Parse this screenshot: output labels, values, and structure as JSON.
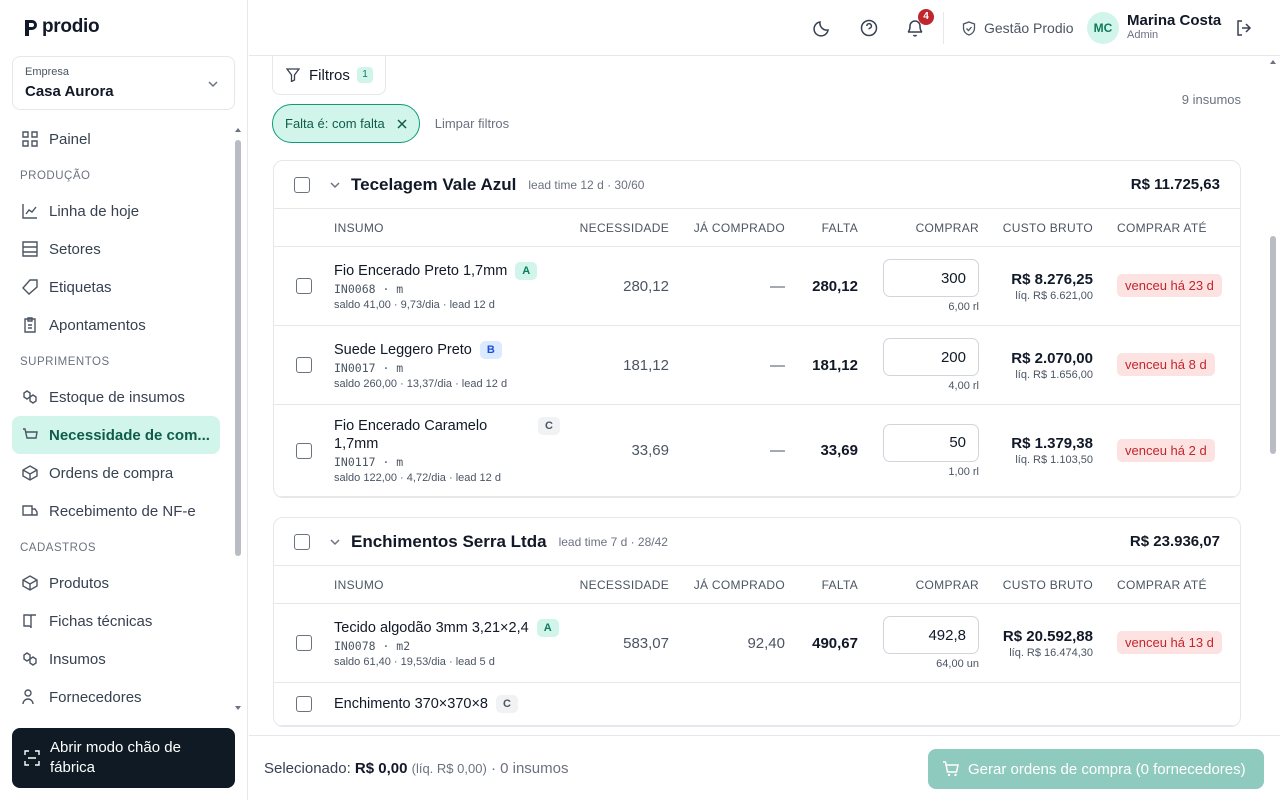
{
  "sidebar": {
    "logo": "prodio",
    "company_label": "Empresa",
    "company": "Casa Aurora",
    "nav": [
      {
        "items": [
          "Painel"
        ]
      },
      {
        "title": "PRODUÇÃO",
        "items": [
          "Linha de hoje",
          "Setores",
          "Etiquetas",
          "Apontamentos"
        ]
      },
      {
        "title": "SUPRIMENTOS",
        "items": [
          "Estoque de insumos",
          "Necessidade de com...",
          "Ordens de compra",
          "Recebimento de NF-e"
        ]
      },
      {
        "title": "CADASTROS",
        "items": [
          "Produtos",
          "Fichas técnicas",
          "Insumos",
          "Fornecedores"
        ]
      }
    ],
    "cta": "Abrir modo chão de fábrica"
  },
  "topbar": {
    "notifications": 4,
    "workspace": "Gestão Prodio",
    "user": {
      "initials": "MC",
      "name": "Marina Costa",
      "role": "Admin"
    }
  },
  "filters": {
    "button": "Filtros",
    "count": 1,
    "result_count": "9 insumos",
    "chips": [
      "Falta é: com falta"
    ],
    "clear": "Limpar filtros"
  },
  "table": {
    "columns": [
      "INSUMO",
      "NECESSIDADE",
      "JÁ COMPRADO",
      "FALTA",
      "COMPRAR",
      "CUSTO BRUTO",
      "COMPRAR ATÉ"
    ],
    "groups": [
      {
        "supplier": "Tecelagem Vale Azul",
        "info": "lead time 12 d · 30/60",
        "total": "R$ 11.725,63",
        "rows": [
          {
            "name": "Fio Encerado Preto 1,7mm",
            "class": "A",
            "code": "IN0068 · m",
            "meta": "saldo 41,00 · 9,73/dia · lead 12 d",
            "need": "280,12",
            "bought": "—",
            "shortfall": "280,12",
            "buy": "300",
            "buy_unit": "6,00 rl",
            "gross": "R$ 8.276,25",
            "net": "líq. R$ 6.621,00",
            "due": "venceu há 23 d"
          },
          {
            "name": "Suede Leggero Preto",
            "class": "B",
            "code": "IN0017 · m",
            "meta": "saldo 260,00 · 13,37/dia · lead 12 d",
            "need": "181,12",
            "bought": "—",
            "shortfall": "181,12",
            "buy": "200",
            "buy_unit": "4,00 rl",
            "gross": "R$ 2.070,00",
            "net": "líq. R$ 1.656,00",
            "due": "venceu há 8 d"
          },
          {
            "name": "Fio Encerado Caramelo 1,7mm",
            "class": "C",
            "code": "IN0117 · m",
            "meta": "saldo 122,00 · 4,72/dia · lead 12 d",
            "need": "33,69",
            "bought": "—",
            "shortfall": "33,69",
            "buy": "50",
            "buy_unit": "1,00 rl",
            "gross": "R$ 1.379,38",
            "net": "líq. R$ 1.103,50",
            "due": "venceu há 2 d"
          }
        ]
      },
      {
        "supplier": "Enchimentos Serra Ltda",
        "info": "lead time 7 d · 28/42",
        "total": "R$ 23.936,07",
        "rows": [
          {
            "name": "Tecido algodão 3mm 3,21×2,4",
            "class": "A",
            "code": "IN0078 · m2",
            "meta": "saldo 61,40 · 19,53/dia · lead 5 d",
            "need": "583,07",
            "bought": "92,40",
            "shortfall": "490,67",
            "buy": "492,8",
            "buy_unit": "64,00 un",
            "gross": "R$ 20.592,88",
            "net": "líq. R$ 16.474,30",
            "due": "venceu há 13 d"
          },
          {
            "name": "Enchimento 370×370×8",
            "class": "C"
          }
        ]
      }
    ]
  },
  "footer": {
    "selected_label": "Selecionado:",
    "selected_total": "R$ 0,00",
    "selected_net": "(líq. R$ 0,00)",
    "selected_count": "· 0 insumos",
    "action": "Gerar ordens de compra (0 fornecedores)"
  }
}
